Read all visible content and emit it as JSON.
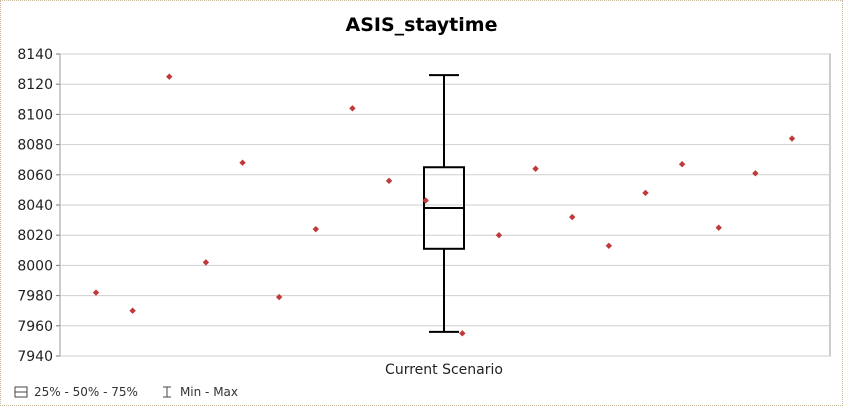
{
  "chart_data": {
    "type": "boxplot",
    "title": "ASIS_staytime",
    "categories": [
      "Current Scenario"
    ],
    "ylim": [
      7940,
      8140
    ],
    "yticks": [
      7940,
      7960,
      7980,
      8000,
      8020,
      8040,
      8060,
      8080,
      8100,
      8120,
      8140
    ],
    "grid": true,
    "box": {
      "category": "Current Scenario",
      "min": 7956,
      "q1": 8011,
      "median": 8038,
      "q3": 8065,
      "max": 8126
    },
    "points": [
      7982,
      7970,
      8125,
      8002,
      8068,
      7979,
      8024,
      8104,
      8056,
      8043,
      7955,
      8020,
      8064,
      8032,
      8013,
      8048,
      8067,
      8025,
      8061,
      8084
    ],
    "point_color": "#c0393b",
    "legend": [
      {
        "icon": "box-icon",
        "label": "25% - 50% - 75%"
      },
      {
        "icon": "min-max-icon",
        "label": "Min - Max"
      }
    ]
  }
}
